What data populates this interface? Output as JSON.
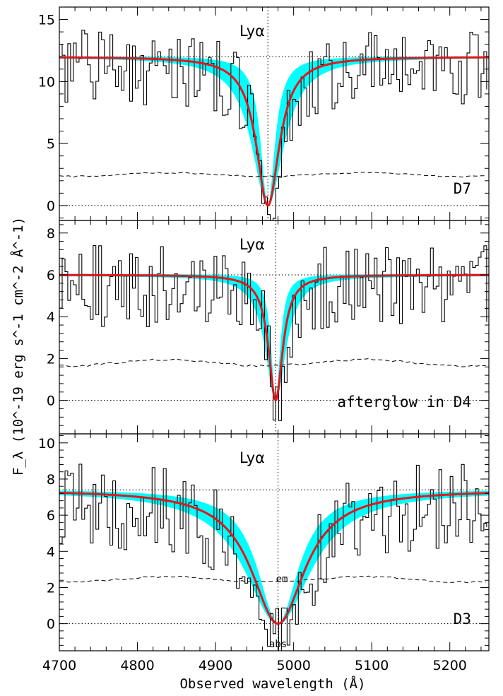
{
  "chart_data": {
    "type": "line",
    "xlabel": "Observed wavelength (Å)",
    "ylabel": "F_λ (10^-19 erg s^-1 cm^-2 Å^-1)",
    "xlim": [
      4700,
      5250
    ],
    "xticks": [
      4700,
      4800,
      4900,
      5000,
      5100,
      5200
    ],
    "panels": [
      {
        "id": "D7",
        "label": "D7",
        "line_label": "Lyα",
        "ylim": [
          -1.2,
          16
        ],
        "yticks": [
          0,
          5,
          10,
          15
        ],
        "continuum": 12.0,
        "line_center": 4967,
        "fit": {
          "center": 4967,
          "width": 18,
          "width_low": 11,
          "width_high": 25
        },
        "error_level": 2.5,
        "noise_amp": 3.0,
        "seed": 7
      },
      {
        "id": "D4",
        "label": "afterglow in D4",
        "line_label": "Lyα",
        "ylim": [
          -1.6,
          8.6
        ],
        "yticks": [
          0,
          2,
          4,
          6,
          8
        ],
        "continuum": 6.0,
        "line_center": 4977,
        "fit": {
          "center": 4977,
          "width": 11,
          "width_low": 7,
          "width_high": 16
        },
        "error_level": 1.8,
        "noise_amp": 2.0,
        "seed": 4
      },
      {
        "id": "D3",
        "label": "D3",
        "line_label": "Lyα",
        "ylim": [
          -1.5,
          10.5
        ],
        "yticks": [
          0,
          2,
          4,
          6,
          8,
          10
        ],
        "continuum": 7.4,
        "line_center": 4980,
        "fit": {
          "center": 4980,
          "width": 42,
          "width_low": 32,
          "width_high": 52
        },
        "error_level": 2.45,
        "noise_amp": 2.4,
        "seed": 3,
        "annotations": [
          {
            "text": "em",
            "x": 4985,
            "y": 2.3
          },
          {
            "text": "abs",
            "x": 4980,
            "y": -1.3
          }
        ]
      }
    ]
  }
}
